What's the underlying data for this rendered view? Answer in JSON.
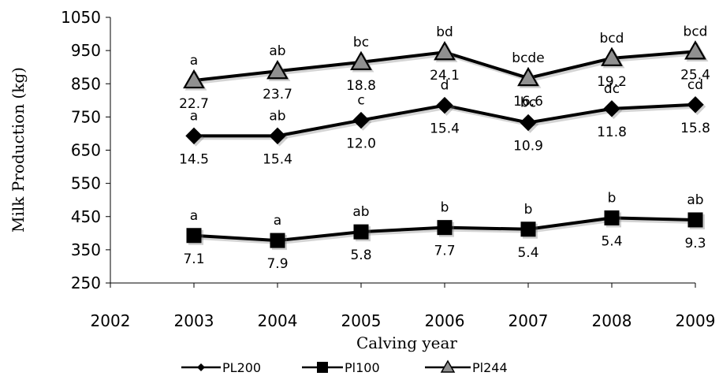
{
  "chart_data": {
    "type": "line",
    "title": "",
    "xlabel": "Calving year",
    "ylabel": "Milk Production (kg)",
    "xlim": [
      2002,
      2009
    ],
    "ylim": [
      250,
      1050
    ],
    "x_ticks": [
      "2002",
      "2003",
      "2004",
      "2005",
      "2006",
      "2007",
      "2008",
      "2009"
    ],
    "y_ticks": [
      "250",
      "350",
      "450",
      "550",
      "650",
      "750",
      "850",
      "950",
      "1050"
    ],
    "grid": false,
    "legend_position": "bottom",
    "x": [
      2003,
      2004,
      2005,
      2006,
      2007,
      2008,
      2009
    ],
    "series": [
      {
        "name": "PL200",
        "marker": "diamond",
        "values": [
          693,
          693,
          740,
          785,
          733,
          775,
          787
        ],
        "letters": [
          "a",
          "ab",
          "c",
          "d",
          "bc",
          "dc",
          "cd"
        ],
        "labels": [
          "14.5",
          "15.4",
          "12.0",
          "15.4",
          "10.9",
          "11.8",
          "15.8"
        ]
      },
      {
        "name": "Pl100",
        "marker": "square",
        "values": [
          393,
          378,
          404,
          417,
          412,
          446,
          440
        ],
        "letters": [
          "a",
          "a",
          "ab",
          "b",
          "b",
          "b",
          "ab"
        ],
        "labels": [
          "7.1",
          "7.9",
          "5.8",
          "7.7",
          "5.4",
          "5.4",
          "9.3"
        ]
      },
      {
        "name": "Pl244",
        "marker": "triangle",
        "values": [
          860,
          888,
          915,
          945,
          867,
          927,
          947
        ],
        "letters": [
          "a",
          "ab",
          "bc",
          "bd",
          "bcde",
          "bcd",
          "bcd"
        ],
        "labels": [
          "22.7",
          "23.7",
          "18.8",
          "24.1",
          "16.6",
          "19.2",
          "25.4"
        ]
      }
    ]
  }
}
